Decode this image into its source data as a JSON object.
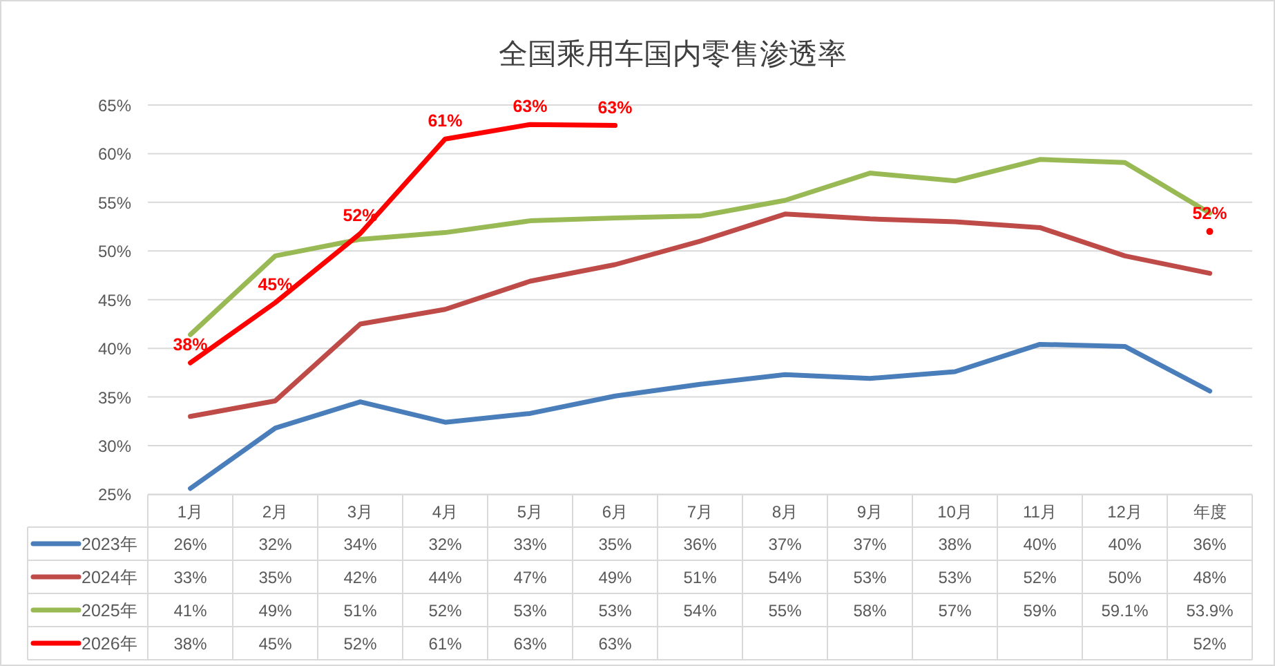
{
  "chart_data": {
    "type": "line",
    "title": "全国乘用车国内零售渗透率",
    "categories": [
      "1月",
      "2月",
      "3月",
      "4月",
      "5月",
      "6月",
      "7月",
      "8月",
      "9月",
      "10月",
      "11月",
      "12月",
      "年度"
    ],
    "series": [
      {
        "name": "2023年",
        "color": "#4a7ebb",
        "values": [
          25.6,
          31.8,
          34.5,
          32.4,
          33.3,
          35.1,
          36.3,
          37.3,
          36.9,
          37.6,
          40.4,
          40.2,
          35.6
        ],
        "value_labels": [
          "26%",
          "32%",
          "34%",
          "32%",
          "33%",
          "35%",
          "36%",
          "37%",
          "37%",
          "38%",
          "40%",
          "40%",
          "36%"
        ]
      },
      {
        "name": "2024年",
        "color": "#be4b48",
        "values": [
          33.0,
          34.6,
          42.5,
          44.0,
          46.9,
          48.6,
          51.0,
          53.8,
          53.3,
          53.0,
          52.4,
          49.5,
          47.7
        ],
        "value_labels": [
          "33%",
          "35%",
          "42%",
          "44%",
          "47%",
          "49%",
          "51%",
          "54%",
          "53%",
          "53%",
          "52%",
          "50%",
          "48%"
        ]
      },
      {
        "name": "2025年",
        "color": "#98b954",
        "values": [
          41.4,
          49.5,
          51.2,
          51.9,
          53.1,
          53.4,
          53.6,
          55.2,
          58.0,
          57.2,
          59.4,
          59.1,
          53.9
        ],
        "value_labels": [
          "41%",
          "49%",
          "51%",
          "52%",
          "53%",
          "53%",
          "54%",
          "55%",
          "58%",
          "57%",
          "59%",
          "59.1%",
          "53.9%"
        ]
      },
      {
        "name": "2026年",
        "color": "#ff0000",
        "values": [
          38.5,
          44.7,
          51.8,
          61.5,
          63.0,
          62.9,
          null,
          null,
          null,
          null,
          null,
          null,
          52
        ],
        "value_labels": [
          "38%",
          "45%",
          "52%",
          "61%",
          "63%",
          "63%",
          null,
          null,
          null,
          null,
          null,
          null,
          "52%"
        ]
      }
    ],
    "annotations": [
      {
        "text": "38%",
        "x": "1月",
        "y": 38.5
      },
      {
        "text": "45%",
        "x": "2月",
        "y": 44.7
      },
      {
        "text": "52%",
        "x": "3月",
        "y": 51.8
      },
      {
        "text": "61%",
        "x": "4月",
        "y": 61.5
      },
      {
        "text": "63%",
        "x": "5月",
        "y": 63.0
      },
      {
        "text": "63%",
        "x": "6月",
        "y": 62.9
      },
      {
        "text": "52%",
        "x": "年度",
        "y": 52
      }
    ],
    "ylim": [
      25,
      65
    ],
    "yticks": [
      {
        "value": 25,
        "label": "25%"
      },
      {
        "value": 30,
        "label": "30%"
      },
      {
        "value": 35,
        "label": "35%"
      },
      {
        "value": 40,
        "label": "40%"
      },
      {
        "value": 45,
        "label": "45%"
      },
      {
        "value": 50,
        "label": "50%"
      },
      {
        "value": 55,
        "label": "55%"
      },
      {
        "value": 60,
        "label": "60%"
      },
      {
        "value": 65,
        "label": "65%"
      }
    ],
    "grid": "y",
    "legend": "bottom"
  }
}
